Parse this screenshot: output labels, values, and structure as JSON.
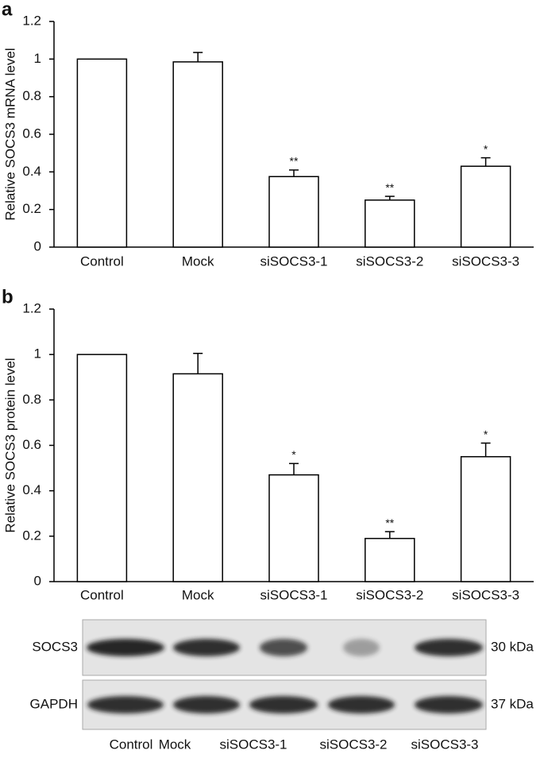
{
  "chart_data": [
    {
      "type": "bar",
      "panel": "a",
      "ylabel": "Relative SOCS3 mRNA level",
      "categories": [
        "Control",
        "Mock",
        "siSOCS3-1",
        "siSOCS3-2",
        "siSOCS3-3"
      ],
      "values": [
        1,
        0.985,
        0.375,
        0.25,
        0.43
      ],
      "errors": [
        0,
        0.05,
        0.035,
        0.02,
        0.045
      ],
      "significance": [
        null,
        null,
        "**",
        "**",
        "*"
      ],
      "color": "#ffffff",
      "ylim": [
        0,
        1.2
      ],
      "yticks": [
        0,
        0.2,
        0.4,
        0.6,
        0.8,
        1,
        1.2
      ]
    },
    {
      "type": "bar",
      "panel": "b",
      "ylabel": "Relative SOCS3 protein level",
      "categories": [
        "Control",
        "Mock",
        "siSOCS3-1",
        "siSOCS3-2",
        "siSOCS3-3"
      ],
      "values": [
        1,
        0.915,
        0.47,
        0.19,
        0.55
      ],
      "errors": [
        0,
        0.09,
        0.05,
        0.03,
        0.06
      ],
      "significance": [
        null,
        null,
        "*",
        "**",
        "*"
      ],
      "color": "#ffffff",
      "ylim": [
        0,
        1.2
      ],
      "yticks": [
        0,
        0.2,
        0.4,
        0.6,
        0.8,
        1,
        1.2
      ]
    }
  ],
  "blot": {
    "rows": [
      {
        "label": "SOCS3",
        "size": "30 kDa"
      },
      {
        "label": "GAPDH",
        "size": "37 kDa"
      }
    ],
    "lanes": [
      "Control",
      "Mock",
      "siSOCS3-1",
      "siSOCS3-2",
      "siSOCS3-3"
    ]
  }
}
